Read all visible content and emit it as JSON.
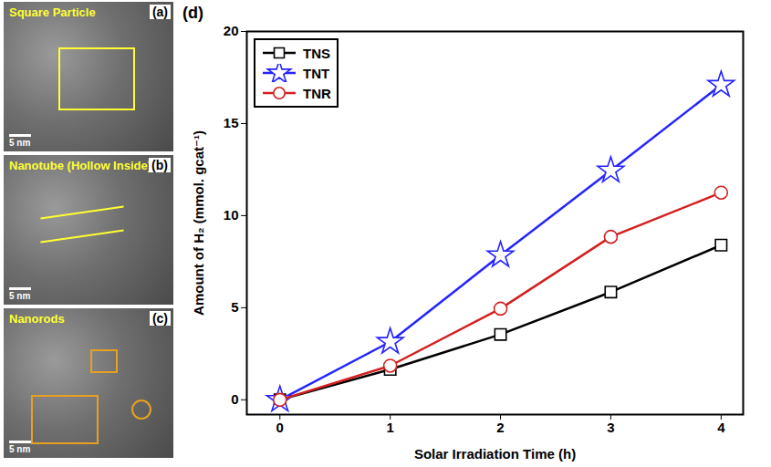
{
  "chart_data": {
    "type": "line",
    "panel_label": "(d)",
    "x_label": "Solar Irradiation Time (h)",
    "y_label": "Amount of H₂ (mmol. gcat⁻¹)",
    "x": [
      0,
      1,
      2,
      3,
      4
    ],
    "series": [
      {
        "name": "TNS",
        "color": "#000000",
        "marker": "square",
        "line_style": "solid",
        "values": [
          0,
          1.65,
          3.55,
          5.85,
          8.4
        ]
      },
      {
        "name": "TNT",
        "color": "#2424ff",
        "marker": "star",
        "line_style": "solid",
        "values": [
          0,
          3.15,
          7.85,
          12.45,
          17.1
        ]
      },
      {
        "name": "TNR",
        "color": "#d42020",
        "marker": "circle",
        "line_style": "solid",
        "values": [
          0,
          1.85,
          4.95,
          8.85,
          11.25
        ]
      }
    ],
    "xlim": [
      -0.3,
      4.2
    ],
    "ylim": [
      -0.8,
      20
    ],
    "xticks": [
      0,
      1,
      2,
      3,
      4
    ],
    "yticks": [
      0,
      5,
      10,
      15,
      20
    ],
    "legend": "top-left",
    "grid": false
  },
  "image_panels": [
    {
      "label": "(a)",
      "annotation": "Square Particle",
      "scale_bar": "5 nm"
    },
    {
      "label": "(b)",
      "annotation": "Nanotube (Hollow Inside)",
      "scale_bar": "5 nm"
    },
    {
      "label": "(c)",
      "annotation": "Nanorods",
      "scale_bar": "5 nm"
    }
  ]
}
